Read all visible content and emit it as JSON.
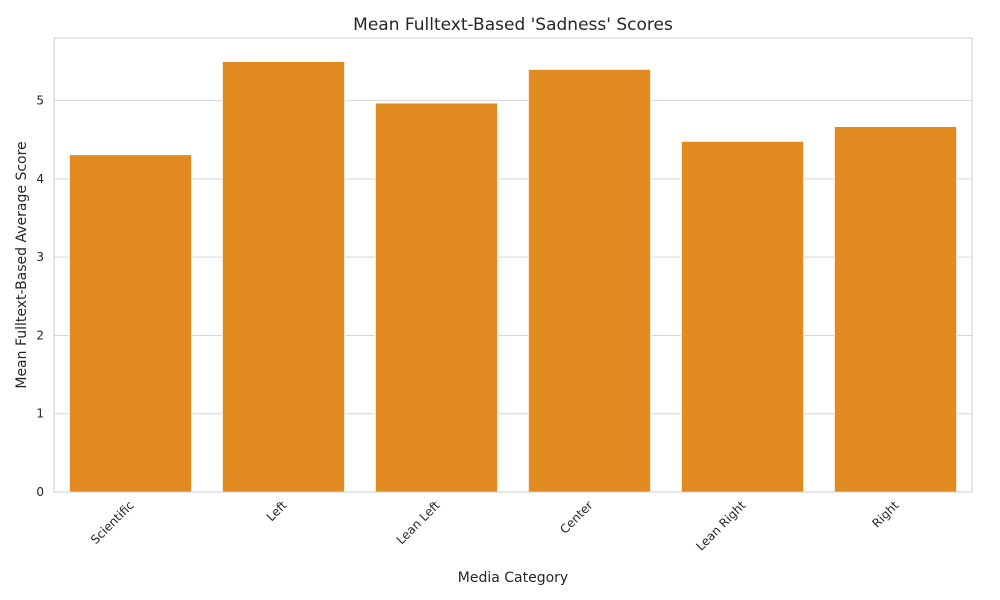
{
  "chart_data": {
    "type": "bar",
    "title": "Mean Fulltext-Based 'Sadness' Scores",
    "xlabel": "Media Category",
    "ylabel": "Mean Fulltext-Based Average Score",
    "categories": [
      "Scientific",
      "Left",
      "Lean Left",
      "Center",
      "Lean Right",
      "Right"
    ],
    "values": [
      4.31,
      5.5,
      4.97,
      5.4,
      4.48,
      4.67
    ],
    "ylim": [
      0,
      5.8
    ],
    "yticks": [
      0,
      1,
      2,
      3,
      4,
      5
    ],
    "bar_color": "#e08a1f",
    "grid": true,
    "legend": "none"
  }
}
